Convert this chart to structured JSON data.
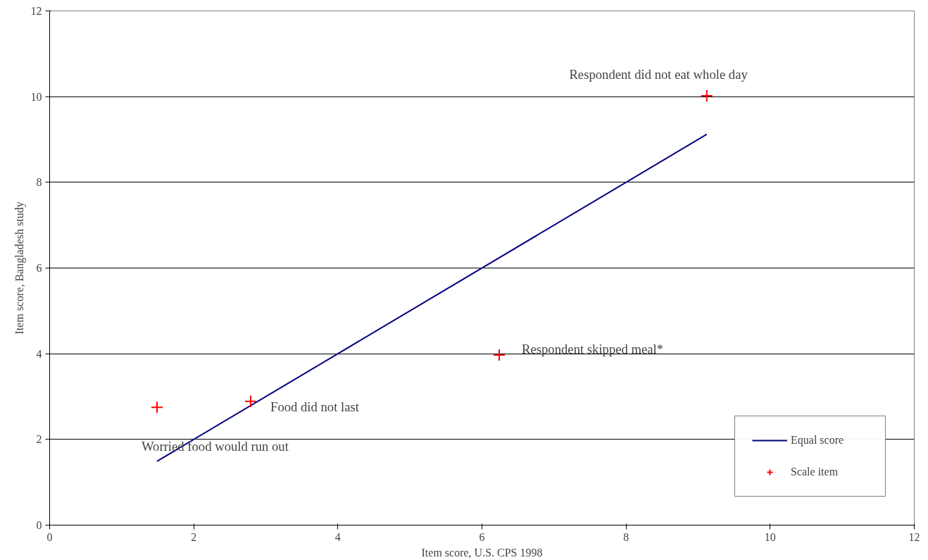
{
  "chart_data": {
    "type": "scatter",
    "xlabel": "Item score, U.S. CPS 1998",
    "ylabel": "Item score, Bangladesh study",
    "xlim": [
      0,
      12
    ],
    "ylim": [
      0,
      12
    ],
    "xticks": [
      0,
      2,
      4,
      6,
      8,
      10,
      12
    ],
    "yticks": [
      0,
      2,
      4,
      6,
      8,
      10,
      12
    ],
    "grid": "y",
    "legend": "bottom right",
    "series": [
      {
        "name": "Equal score",
        "type": "line",
        "color": "#000080",
        "x": [
          1.49,
          9.12
        ],
        "values": [
          1.49,
          9.12
        ],
        "line_style": "solid"
      },
      {
        "name": "Scale item",
        "marker": "cross",
        "color": "#ff0000",
        "x": [
          1.49,
          2.79,
          6.24,
          9.12
        ],
        "values": [
          2.75,
          2.89,
          3.97,
          10.02
        ]
      }
    ],
    "annotations": [
      {
        "text": "Worried food would run out",
        "x": 1.49,
        "y": 2.75
      },
      {
        "text": "Food did not last",
        "x": 2.79,
        "y": 2.89
      },
      {
        "text": "Respondent skipped meal*",
        "x": 6.24,
        "y": 3.97
      },
      {
        "text": "Respondent did not eat whole day",
        "x": 9.12,
        "y": 10.02
      }
    ]
  }
}
